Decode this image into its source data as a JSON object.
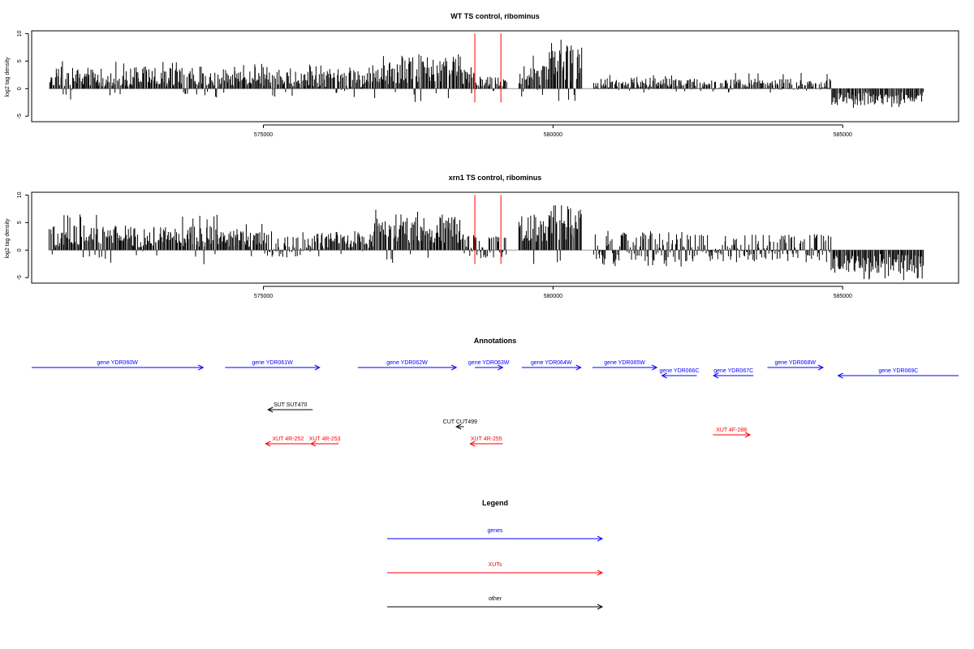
{
  "colors": {
    "genes": "#0000ff",
    "xuts": "#ff0000",
    "other": "#000000",
    "marker": "#ff0000",
    "axis": "#000000",
    "baseline": "#999999"
  },
  "chart_data": [
    {
      "type": "bar",
      "title": "WT TS control, ribominus",
      "ylabel": "log2 tag density",
      "xlim": [
        571000,
        587000
      ],
      "ylim": [
        -6,
        10.5
      ],
      "yticks": [
        -5,
        0,
        5,
        10
      ],
      "xticks": [
        575000,
        580000,
        585000
      ],
      "markers": [
        578650,
        579100
      ],
      "profile": [
        {
          "range": [
            571300,
            574200
          ],
          "base": 2.2,
          "amp": 1.8,
          "peak": 5.3
        },
        {
          "range": [
            574200,
            575300
          ],
          "base": 2.0,
          "amp": 1.6,
          "peak": 4.5
        },
        {
          "range": [
            575300,
            576800
          ],
          "base": 2.0,
          "amp": 1.8,
          "peak": 4.5
        },
        {
          "range": [
            576800,
            577400
          ],
          "base": 2.8,
          "amp": 2.0,
          "peak": 6.0
        },
        {
          "range": [
            577400,
            578400
          ],
          "base": 3.5,
          "amp": 2.5,
          "peak": 6.3
        },
        {
          "range": [
            578400,
            578650
          ],
          "base": 2.0,
          "amp": 1.5,
          "peak": 4.0
        },
        {
          "range": [
            578650,
            579200
          ],
          "base": 1.0,
          "amp": 1.2,
          "peak": 2.0
        },
        {
          "range": [
            579400,
            579900
          ],
          "base": 2.5,
          "amp": 2.0,
          "peak": 6.5
        },
        {
          "range": [
            579900,
            580500
          ],
          "base": 4.5,
          "amp": 3.5,
          "peak": 9.5
        },
        {
          "range": [
            580700,
            582300
          ],
          "base": 1.0,
          "amp": 1.0,
          "peak": 2.5
        },
        {
          "range": [
            582300,
            584800
          ],
          "base": 0.8,
          "amp": 1.0,
          "peak": 2.9
        },
        {
          "range": [
            584800,
            586400
          ],
          "base": -1.8,
          "amp": 1.2,
          "peak": -3.5
        }
      ]
    },
    {
      "type": "bar",
      "title": "xrn1 TS control, ribominus",
      "ylabel": "log2 tag density",
      "xlim": [
        571000,
        587000
      ],
      "ylim": [
        -6,
        10.5
      ],
      "yticks": [
        -5,
        0,
        5,
        10
      ],
      "xticks": [
        575000,
        580000,
        585000
      ],
      "markers": [
        578650,
        579100
      ],
      "profile": [
        {
          "range": [
            571300,
            574200
          ],
          "base": 2.5,
          "amp": 2.0,
          "peak": 6.5
        },
        {
          "range": [
            574200,
            575000
          ],
          "base": 2.2,
          "amp": 1.8,
          "peak": 5.0
        },
        {
          "range": [
            575000,
            575700
          ],
          "base": 1.0,
          "amp": 2.5,
          "peak": -3.0
        },
        {
          "range": [
            575700,
            576900
          ],
          "base": 1.5,
          "amp": 1.5,
          "peak": 3.5
        },
        {
          "range": [
            576900,
            577400
          ],
          "base": 3.5,
          "amp": 2.5,
          "peak": 7.5
        },
        {
          "range": [
            577400,
            578400
          ],
          "base": 3.8,
          "amp": 2.5,
          "peak": 7.0
        },
        {
          "range": [
            578400,
            578650
          ],
          "base": 1.5,
          "amp": 1.5,
          "peak": 3.0
        },
        {
          "range": [
            578650,
            579200
          ],
          "base": 0.5,
          "amp": 2.0,
          "peak": -2.5
        },
        {
          "range": [
            579400,
            579900
          ],
          "base": 4.0,
          "amp": 2.5,
          "peak": 7.0
        },
        {
          "range": [
            579900,
            580500
          ],
          "base": 5.0,
          "amp": 3.5,
          "peak": 10.0
        },
        {
          "range": [
            580700,
            582300
          ],
          "base": 0.5,
          "amp": 3.0,
          "peak": -3.0
        },
        {
          "range": [
            582300,
            584800
          ],
          "base": 0.3,
          "amp": 2.5,
          "peak": 3.0
        },
        {
          "range": [
            584800,
            586400
          ],
          "base": -2.5,
          "amp": 1.8,
          "peak": -5.5
        }
      ]
    }
  ],
  "annotations": {
    "title": "Annotations",
    "features": [
      {
        "label": "gene YDR060W",
        "type": "gene",
        "strand": "+",
        "start": 571000,
        "end": 573960,
        "row": 0
      },
      {
        "label": "gene YDR061W",
        "type": "gene",
        "strand": "+",
        "start": 574340,
        "end": 575970,
        "row": 0
      },
      {
        "label": "gene YDR062W",
        "type": "gene",
        "strand": "+",
        "start": 576630,
        "end": 578330,
        "row": 0
      },
      {
        "label": "gene YDR063W",
        "type": "gene",
        "strand": "+",
        "start": 578650,
        "end": 579130,
        "row": 0
      },
      {
        "label": "gene YDR064W",
        "type": "gene",
        "strand": "+",
        "start": 579460,
        "end": 580480,
        "row": 0
      },
      {
        "label": "gene YDR065W",
        "type": "gene",
        "strand": "+",
        "start": 580680,
        "end": 581790,
        "row": 0
      },
      {
        "label": "gene YDR066C",
        "type": "gene",
        "strand": "-",
        "start": 581880,
        "end": 582480,
        "row": 1
      },
      {
        "label": "gene YDR067C",
        "type": "gene",
        "strand": "-",
        "start": 582770,
        "end": 583460,
        "row": 1
      },
      {
        "label": "gene YDR068W",
        "type": "gene",
        "strand": "+",
        "start": 583700,
        "end": 584660,
        "row": 0
      },
      {
        "label": "gene YDR069C",
        "type": "gene",
        "strand": "-",
        "start": 584920,
        "end": 587000,
        "row": 1
      },
      {
        "label": "SUT SUT470",
        "type": "other",
        "strand": "-",
        "start": 575080,
        "end": 575850,
        "row": 2
      },
      {
        "label": "CUT CUT499",
        "type": "other",
        "strand": "-",
        "start": 578330,
        "end": 578460,
        "row": 3
      },
      {
        "label": "XUT 4R-252",
        "type": "xut",
        "strand": "-",
        "start": 575040,
        "end": 575810,
        "row": 4
      },
      {
        "label": "XUT 4R-253",
        "type": "xut",
        "strand": "-",
        "start": 575820,
        "end": 576300,
        "row": 4
      },
      {
        "label": "XUT 4R-255",
        "type": "xut",
        "strand": "-",
        "start": 578570,
        "end": 579130,
        "row": 4
      },
      {
        "label": "XUT 4F-288",
        "type": "xut",
        "strand": "+",
        "start": 582760,
        "end": 583400,
        "row": 5
      }
    ]
  },
  "legend": {
    "title": "Legend",
    "items": [
      {
        "label": "genes",
        "type": "gene"
      },
      {
        "label": "XUTs",
        "type": "xut"
      },
      {
        "label": "other",
        "type": "other"
      }
    ]
  }
}
